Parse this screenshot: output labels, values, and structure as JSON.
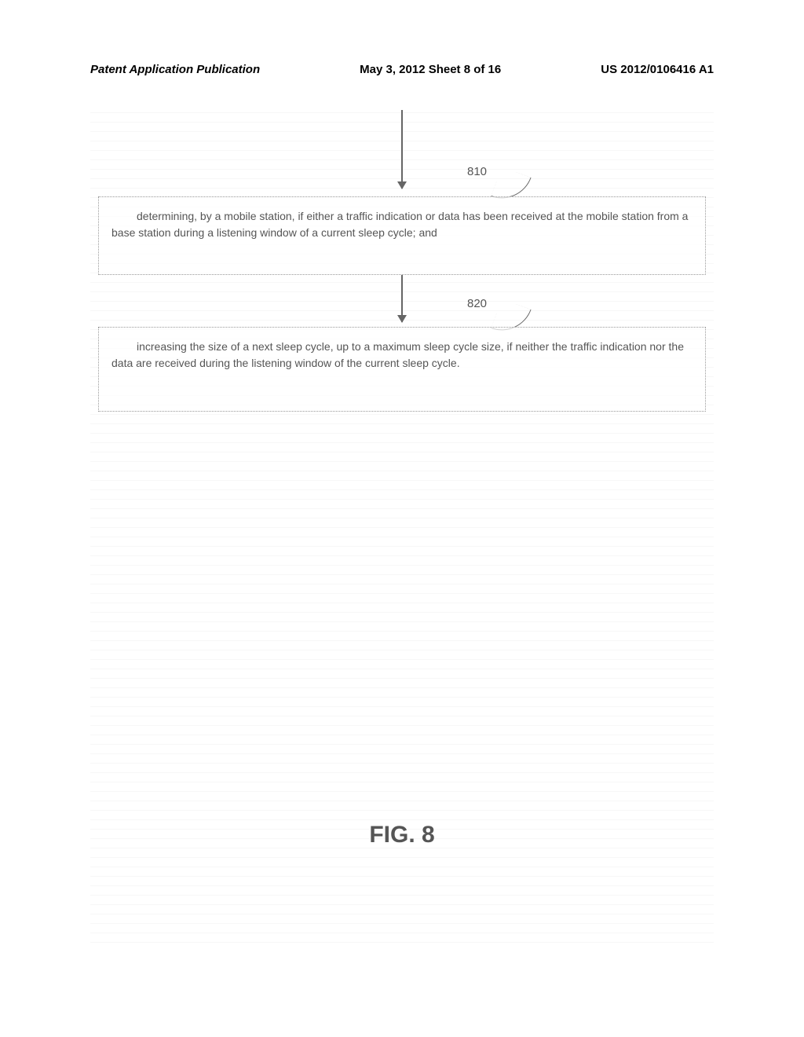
{
  "header": {
    "left": "Patent Application Publication",
    "center": "May 3, 2012  Sheet 8 of 16",
    "right": "US 2012/0106416 A1"
  },
  "diagram": {
    "type": "flowchart",
    "background_color": "#ffffff",
    "hatch_color": "#e0e0e0",
    "nodes": [
      {
        "id": "810",
        "label": "810",
        "text": "determining, by a mobile station, if either a traffic indication or data has been received at the mobile station from a base station during a listening window of a current sleep cycle; and",
        "border_style": "dotted",
        "border_color": "#999999",
        "text_color": "#555555",
        "fontsize": 14
      },
      {
        "id": "820",
        "label": "820",
        "text": "increasing the size of a next sleep cycle, up to a maximum sleep cycle size, if neither the traffic indication nor the data are received during the listening window of the current sleep cycle.",
        "border_style": "dotted",
        "border_color": "#999999",
        "text_color": "#555555",
        "fontsize": 14
      }
    ],
    "edges": [
      {
        "from": "start",
        "to": "810",
        "arrow_color": "#666666"
      },
      {
        "from": "810",
        "to": "820",
        "arrow_color": "#666666"
      }
    ],
    "figure_label": "FIG. 8",
    "figure_label_fontsize": 30,
    "figure_label_color": "#555555"
  }
}
